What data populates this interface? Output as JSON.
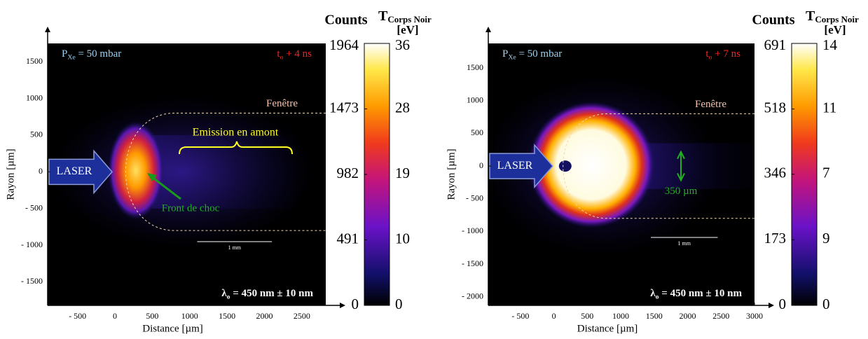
{
  "chart_data": [
    {
      "type": "image",
      "x_label": "Distance [µm]",
      "y_label": "Rayon [µm]",
      "xlim": [
        -900,
        2820
      ],
      "xticks": [
        {
          "value": -500,
          "label": "- 500"
        },
        0,
        500,
        1000,
        1500,
        2000,
        2500
      ],
      "ylim": [
        -1820,
        1750
      ],
      "yticks": [
        1500,
        1000,
        500,
        0,
        {
          "value": -500,
          "label": "- 500"
        },
        {
          "value": -1000,
          "label": "- 1000"
        },
        {
          "value": -1500,
          "label": "- 1500"
        }
      ],
      "colorbar": {
        "title": "Counts",
        "clim": [
          0,
          1964
        ],
        "ticks": [
          1964,
          1473,
          982,
          491,
          0
        ],
        "temperature_title": "T",
        "temperature_subscript": "Corps Noir",
        "temperature_unit": "[eV]",
        "temperature_ticks": [
          36,
          28,
          19,
          10,
          0
        ]
      },
      "annotations": {
        "pressure": [
          "P",
          "Xe",
          " = 50 mbar"
        ],
        "time": [
          "t",
          "o",
          " +  4 ns"
        ],
        "wavelength": [
          "λ",
          "o",
          " = 450 nm ± 10 nm"
        ],
        "window": "Fenêtre",
        "laser": "LASER",
        "scale_bar": "1 mm",
        "emission": "Emission en amont",
        "shock": "Front de choc"
      }
    },
    {
      "type": "image",
      "x_label": "Distance [µm]",
      "y_label": "Rayon [µm]",
      "xlim": [
        -980,
        3000
      ],
      "xticks": [
        {
          "value": -500,
          "label": "- 500"
        },
        0,
        500,
        1000,
        1500,
        2000,
        2500,
        3000
      ],
      "ylim": [
        -2130,
        1875
      ],
      "yticks": [
        1500,
        1000,
        500,
        0,
        {
          "value": -500,
          "label": "- 500"
        },
        {
          "value": -1000,
          "label": "- 1000"
        },
        {
          "value": -1500,
          "label": "- 1500"
        },
        {
          "value": -2000,
          "label": "- 2000"
        }
      ],
      "colorbar": {
        "title": "Counts",
        "clim": [
          0,
          691
        ],
        "ticks": [
          691,
          518,
          346,
          173,
          0
        ],
        "temperature_title": "T",
        "temperature_subscript": "Corps Noir",
        "temperature_unit": "[eV]",
        "temperature_ticks": [
          14,
          11,
          7,
          9,
          0
        ]
      },
      "annotations": {
        "pressure": [
          "P",
          "Xe",
          " = 50 mbar"
        ],
        "time": [
          "t",
          "o",
          " +  7 ns"
        ],
        "wavelength": [
          "λ",
          "o",
          " = 450 nm ± 10 nm"
        ],
        "window": "Fenêtre",
        "laser": "LASER",
        "scale_bar": "1 mm",
        "width": "350 µm"
      }
    }
  ]
}
